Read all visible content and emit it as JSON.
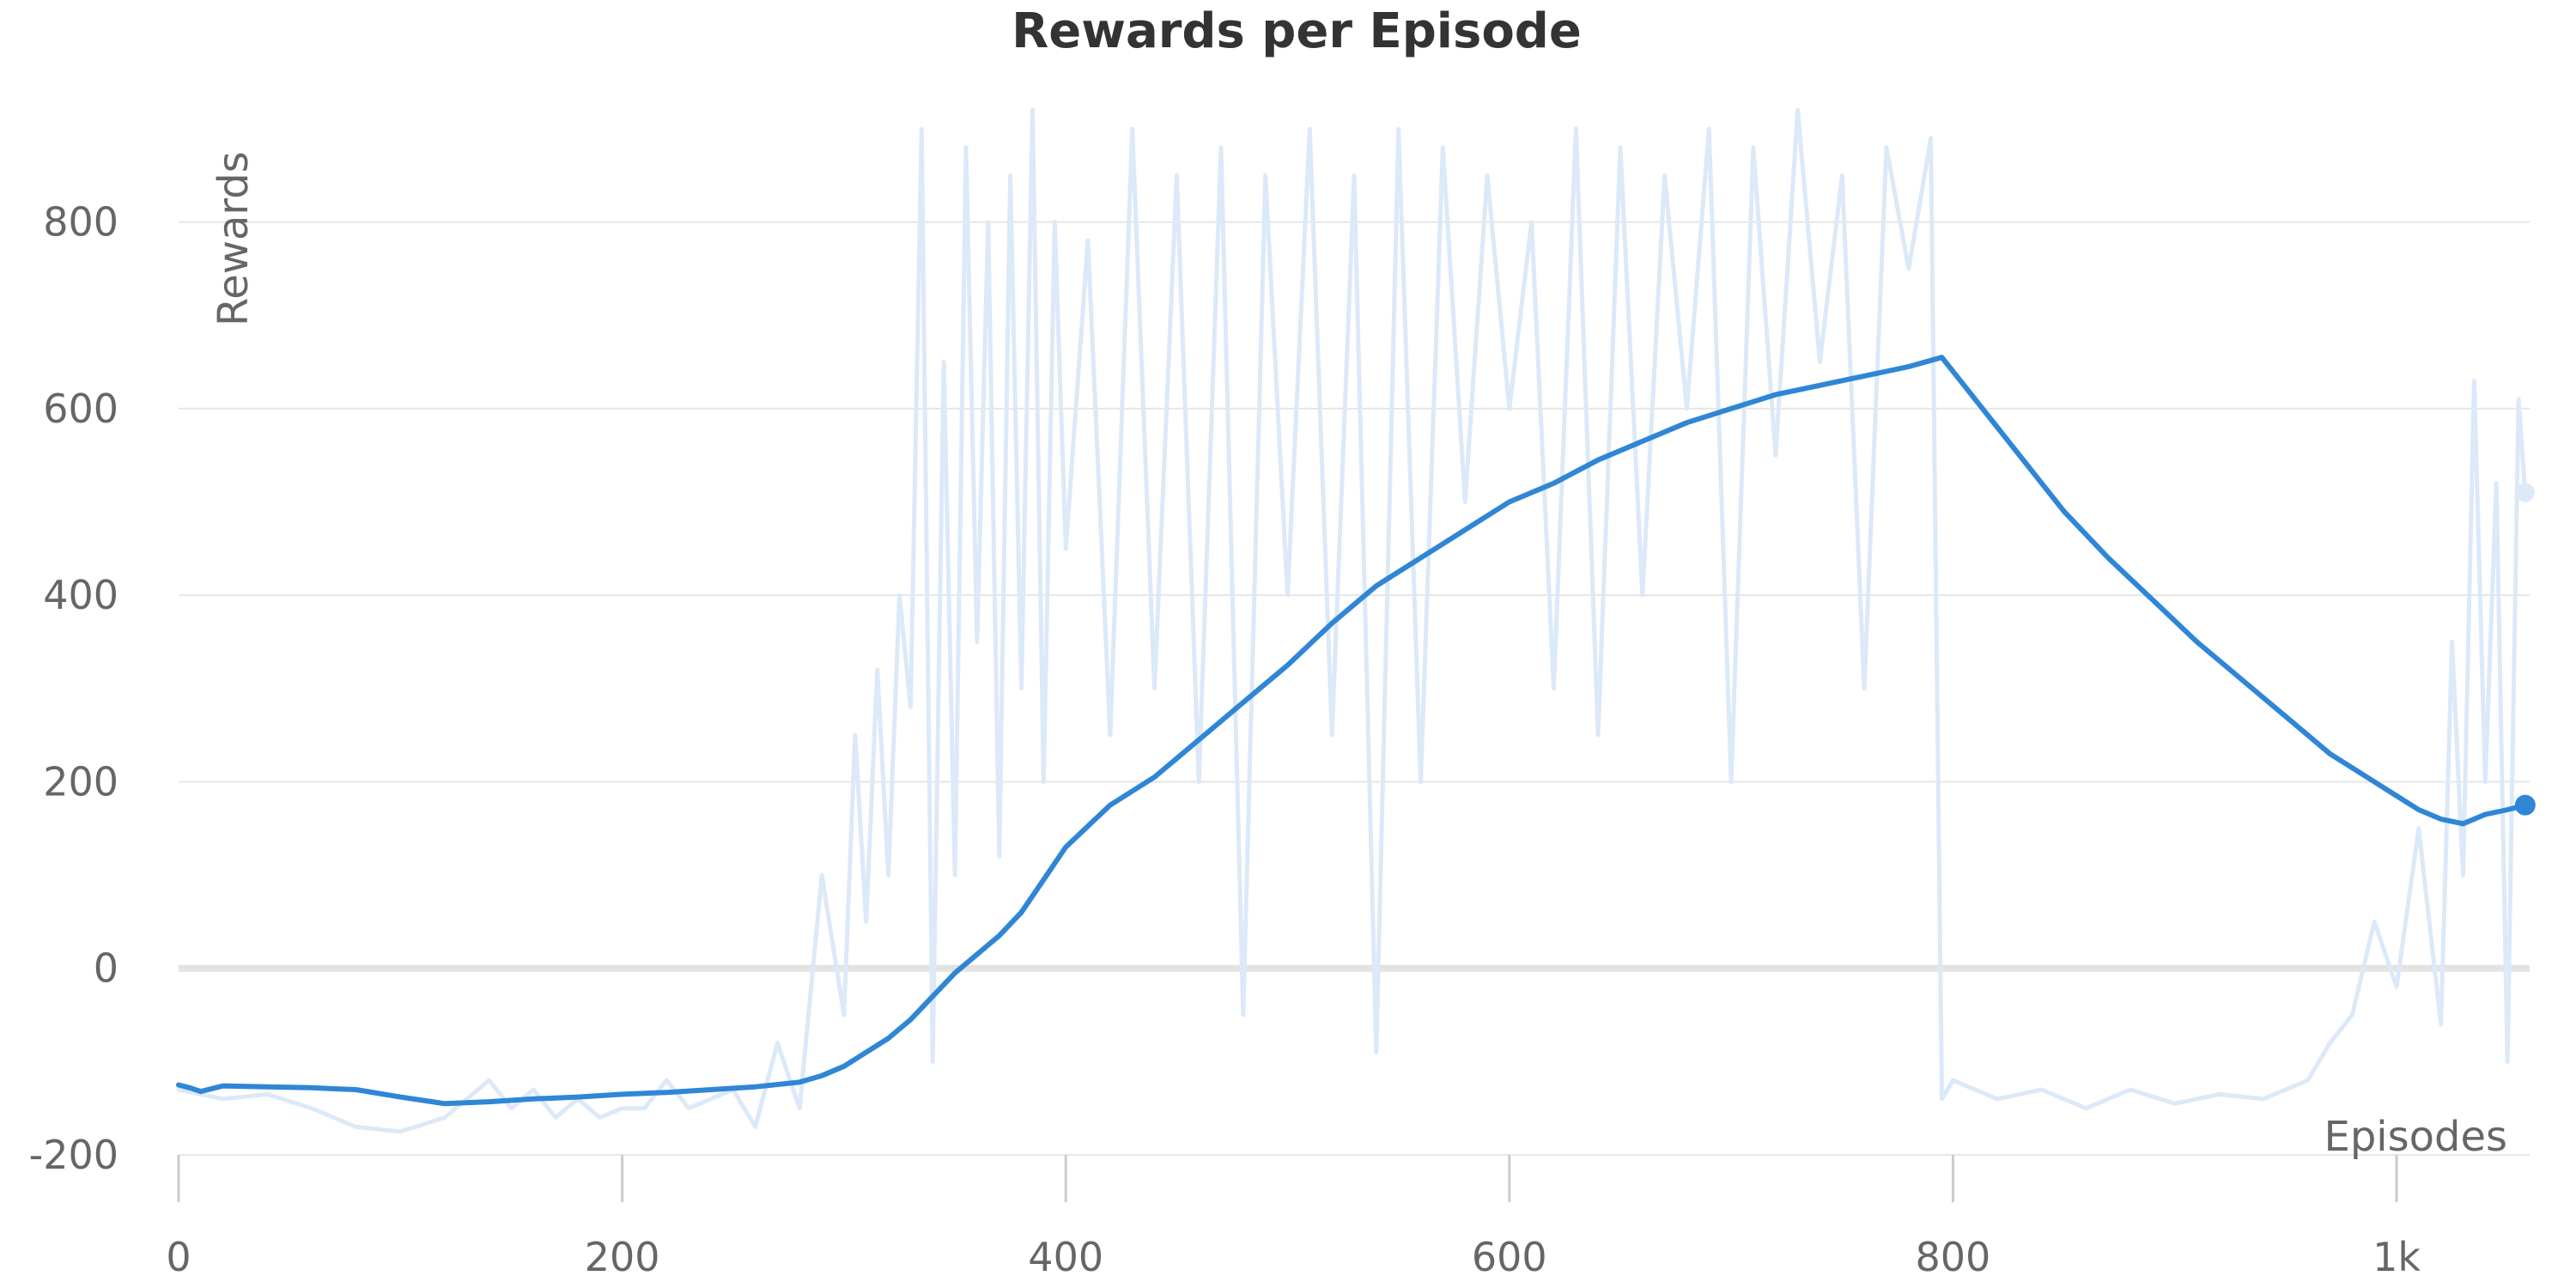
{
  "chart_data": {
    "type": "line",
    "title": "Rewards per Episode",
    "xlabel": "Episodes",
    "ylabel": "Rewards",
    "xlim": [
      0,
      1060
    ],
    "ylim": [
      -200,
      900
    ],
    "x_ticks": [
      {
        "value": 0,
        "label": "0"
      },
      {
        "value": 200,
        "label": "200"
      },
      {
        "value": 400,
        "label": "400"
      },
      {
        "value": 600,
        "label": "600"
      },
      {
        "value": 800,
        "label": "800"
      },
      {
        "value": 1000,
        "label": "1k"
      }
    ],
    "y_ticks": [
      {
        "value": -200,
        "label": "-200"
      },
      {
        "value": 0,
        "label": "0"
      },
      {
        "value": 200,
        "label": "200"
      },
      {
        "value": 400,
        "label": "400"
      },
      {
        "value": 600,
        "label": "600"
      },
      {
        "value": 800,
        "label": "800"
      }
    ],
    "grid": true,
    "colors": {
      "raw": "#dbe9f8",
      "smoothed": "#2f86d6",
      "zero_line": "#e3e3e3",
      "grid": "#e6e6e6",
      "axis": "#cccccc"
    },
    "series": [
      {
        "role": "raw",
        "x": [
          0,
          20,
          40,
          60,
          80,
          100,
          120,
          140,
          150,
          160,
          170,
          180,
          190,
          200,
          210,
          220,
          230,
          240,
          250,
          260,
          270,
          280,
          290,
          300,
          305,
          310,
          315,
          320,
          325,
          330,
          335,
          340,
          345,
          350,
          355,
          360,
          365,
          370,
          375,
          380,
          385,
          390,
          395,
          400,
          410,
          420,
          430,
          440,
          450,
          460,
          470,
          480,
          490,
          500,
          510,
          520,
          530,
          540,
          550,
          560,
          570,
          580,
          590,
          600,
          610,
          620,
          630,
          640,
          650,
          660,
          670,
          680,
          690,
          700,
          710,
          720,
          730,
          740,
          750,
          760,
          770,
          780,
          790,
          795,
          800,
          820,
          840,
          860,
          880,
          900,
          920,
          940,
          960,
          970,
          980,
          990,
          1000,
          1010,
          1020,
          1025,
          1030,
          1035,
          1040,
          1045,
          1050,
          1055,
          1058
        ],
        "values": [
          -130,
          -140,
          -135,
          -150,
          -170,
          -175,
          -160,
          -120,
          -150,
          -130,
          -160,
          -140,
          -160,
          -150,
          -150,
          -120,
          -150,
          -140,
          -130,
          -170,
          -80,
          -150,
          100,
          -50,
          250,
          50,
          320,
          100,
          400,
          280,
          900,
          -100,
          650,
          100,
          880,
          350,
          800,
          120,
          850,
          300,
          920,
          200,
          800,
          450,
          780,
          250,
          900,
          300,
          850,
          200,
          880,
          -50,
          850,
          400,
          900,
          250,
          850,
          -90,
          900,
          200,
          880,
          500,
          850,
          600,
          800,
          300,
          900,
          250,
          880,
          400,
          850,
          600,
          900,
          200,
          880,
          550,
          920,
          650,
          850,
          300,
          880,
          750,
          890,
          -140,
          -120,
          -140,
          -130,
          -150,
          -130,
          -145,
          -135,
          -140,
          -120,
          -80,
          -50,
          50,
          -20,
          150,
          -60,
          350,
          100,
          630,
          200,
          520,
          -100,
          610,
          510
        ]
      },
      {
        "role": "smoothed",
        "x": [
          0,
          5,
          10,
          20,
          40,
          60,
          80,
          100,
          120,
          140,
          160,
          180,
          200,
          220,
          240,
          260,
          280,
          290,
          300,
          310,
          320,
          330,
          340,
          350,
          360,
          370,
          380,
          390,
          400,
          420,
          440,
          460,
          480,
          500,
          520,
          540,
          560,
          580,
          600,
          620,
          640,
          660,
          680,
          700,
          720,
          740,
          760,
          780,
          795,
          810,
          830,
          850,
          870,
          890,
          910,
          930,
          950,
          970,
          990,
          1000,
          1010,
          1020,
          1030,
          1040,
          1050,
          1058
        ],
        "values": [
          -125,
          -128,
          -132,
          -126,
          -127,
          -128,
          -130,
          -138,
          -145,
          -143,
          -140,
          -138,
          -135,
          -133,
          -130,
          -127,
          -122,
          -115,
          -105,
          -90,
          -75,
          -55,
          -30,
          -5,
          15,
          35,
          60,
          95,
          130,
          175,
          205,
          245,
          285,
          325,
          370,
          410,
          440,
          470,
          500,
          520,
          545,
          565,
          585,
          600,
          615,
          625,
          635,
          645,
          655,
          610,
          550,
          490,
          440,
          395,
          350,
          310,
          270,
          230,
          200,
          185,
          170,
          160,
          155,
          165,
          170,
          175
        ]
      }
    ]
  }
}
